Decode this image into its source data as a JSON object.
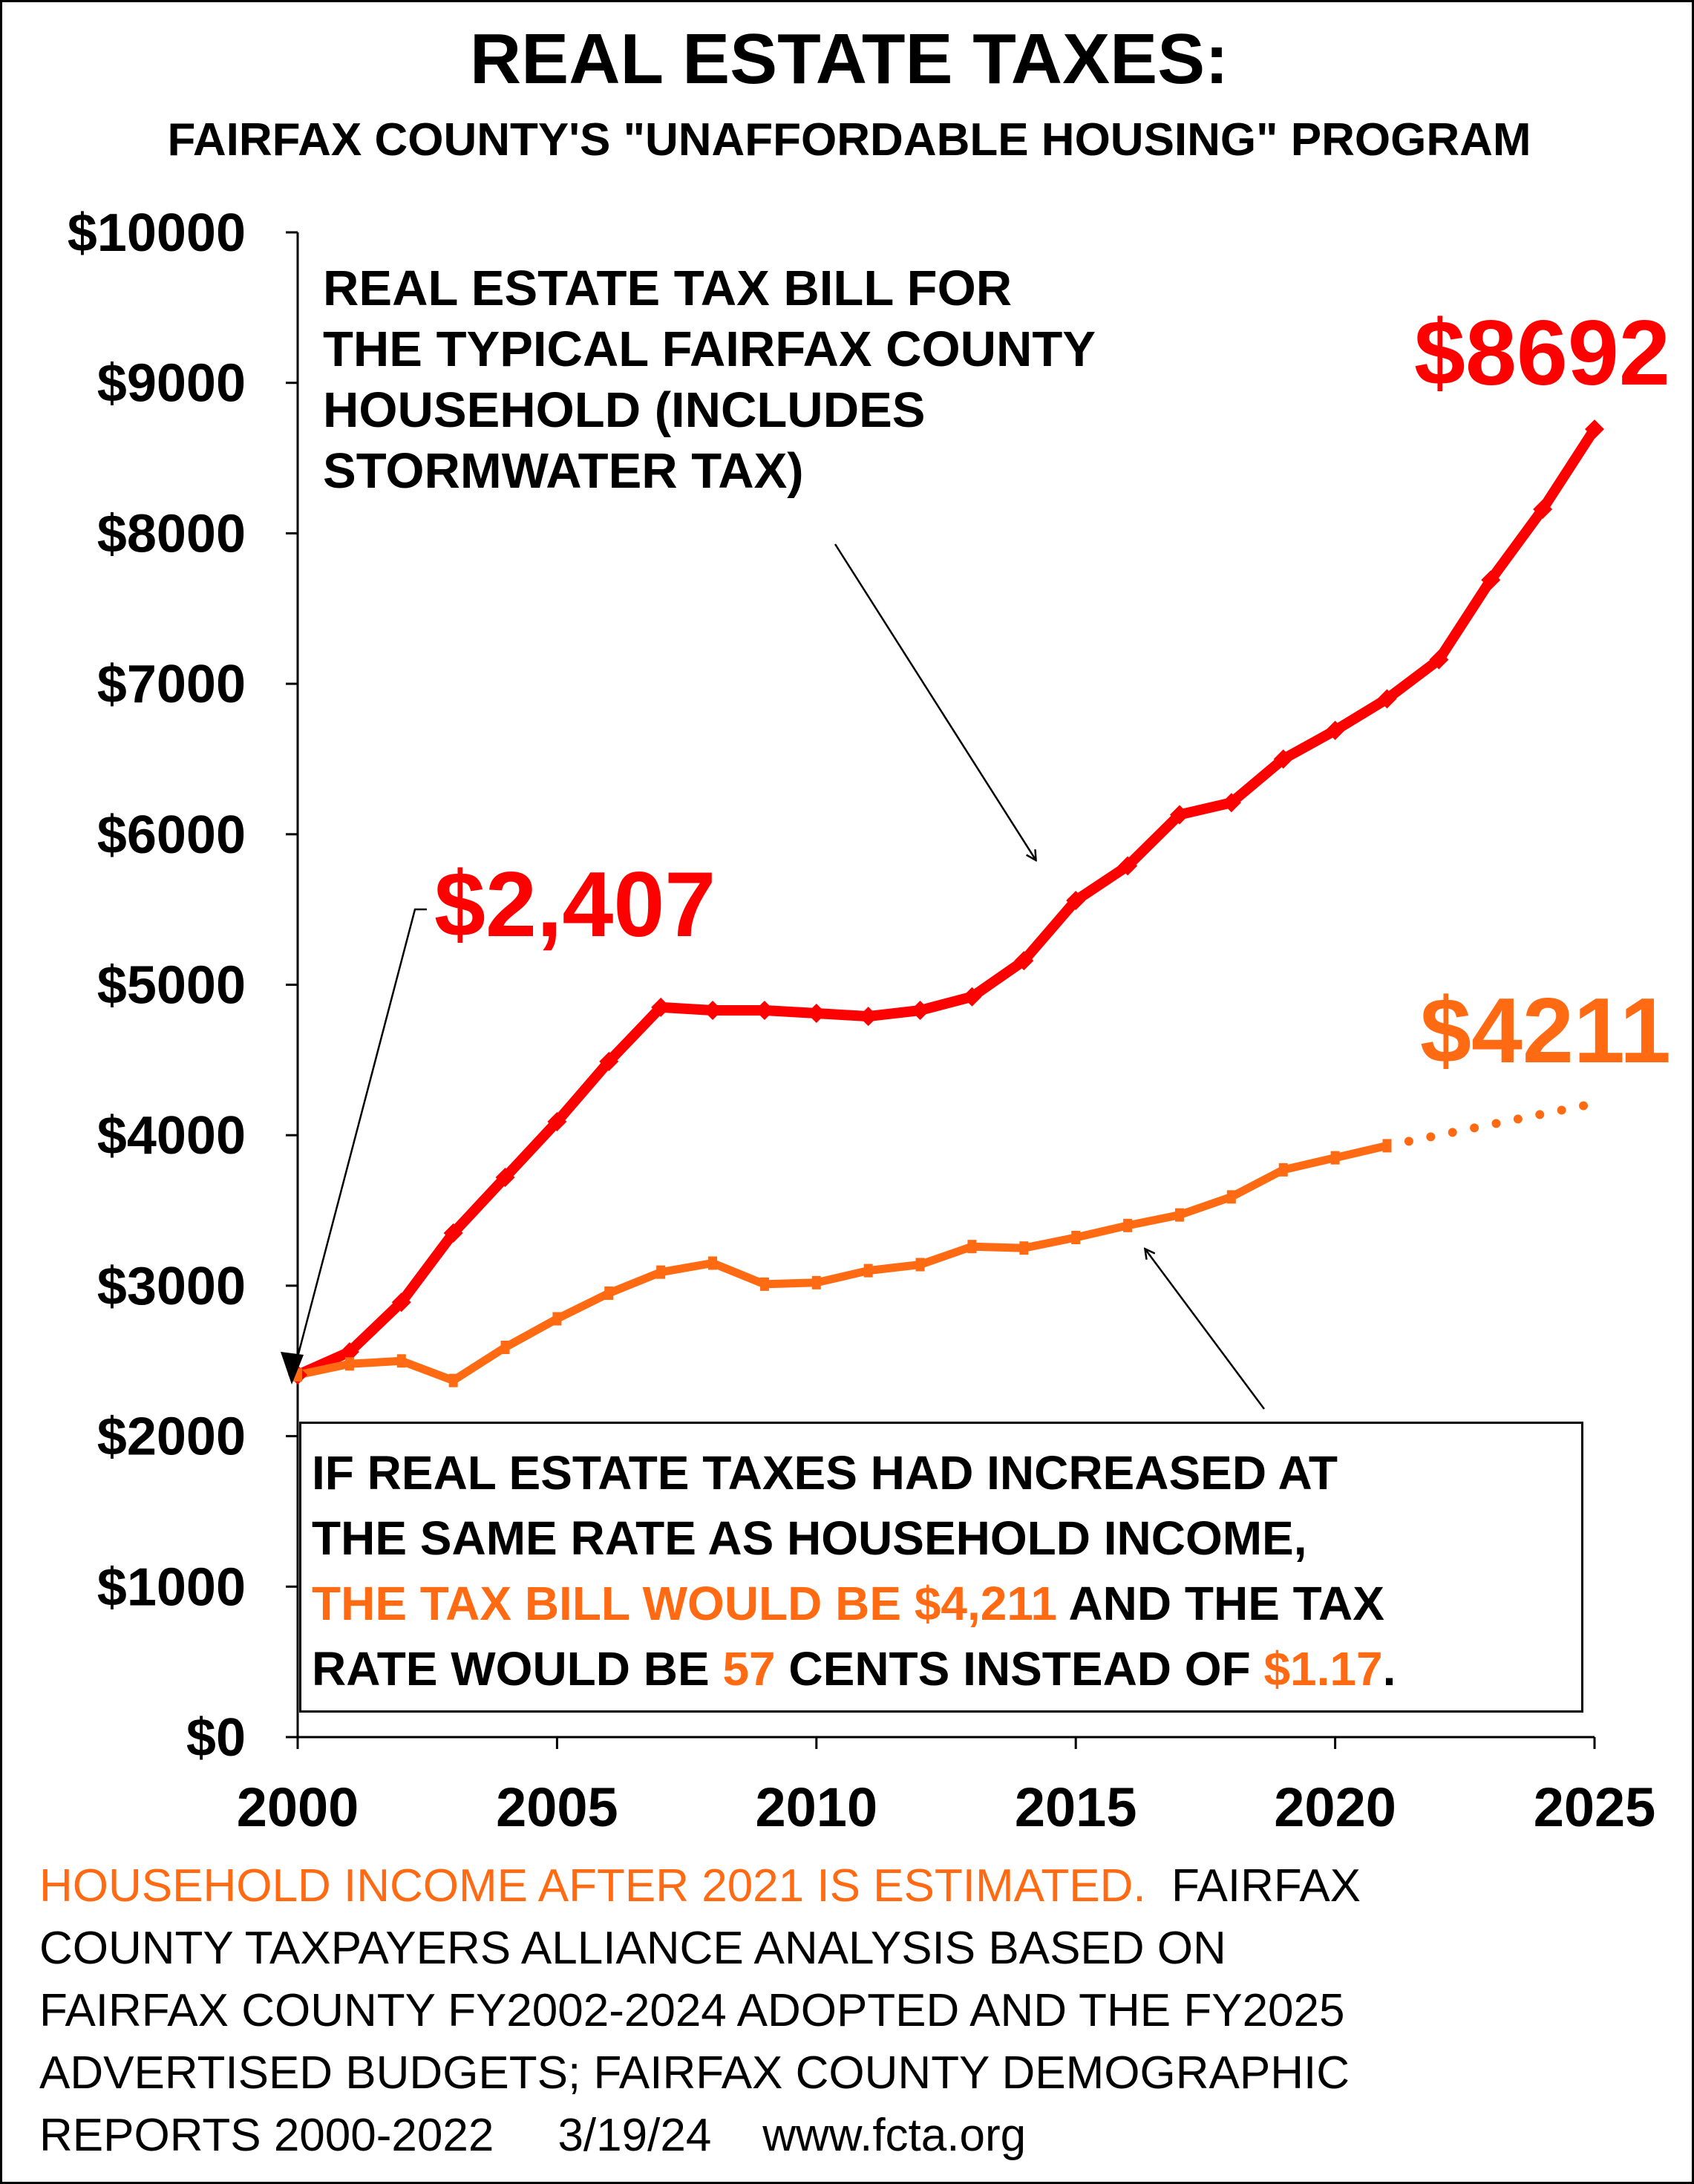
{
  "title": "REAL ESTATE TAXES:",
  "subtitle": "FAIRFAX COUNTY'S \"UNAFFORDABLE HOUSING\" PROGRAM",
  "colors": {
    "red_series": "#ff0000",
    "orange_series": "#ff6a13",
    "text": "#000000"
  },
  "callout_red": [
    "REAL ESTATE TAX BILL FOR",
    "THE TYPICAL FAIRFAX COUNTY",
    "HOUSEHOLD  (INCLUDES",
    "STORMWATER TAX)"
  ],
  "label_start": "$2,407",
  "label_end_red": "$8692",
  "label_end_orange": "$4211",
  "box": {
    "line1": "IF REAL ESTATE TAXES HAD INCREASED AT",
    "line2": "THE SAME RATE AS HOUSEHOLD INCOME,",
    "line3_orange": "THE  TAX BILL WOULD BE $4,211",
    "line3_black": " AND THE TAX",
    "line4_a": "RATE WOULD BE ",
    "line4_b": "57",
    "line4_c": " CENTS INSTEAD OF ",
    "line4_d": "$1.17",
    "line4_e": "."
  },
  "footer": {
    "estimated_note": "HOUSEHOLD INCOME AFTER 2021 IS ESTIMATED.",
    "source_first": "  FAIRFAX",
    "source_lines": [
      "COUNTY TAXPAYERS ALLIANCE ANALYSIS BASED ON",
      "FAIRFAX COUNTY FY2002-2024  ADOPTED  AND THE FY2025",
      "ADVERTISED BUDGETS;  FAIRFAX COUNTY DEMOGRAPHIC",
      "REPORTS 2000-2022     3/19/24    www.fcta.org"
    ]
  },
  "chart_data": {
    "type": "line",
    "title": "REAL ESTATE TAXES:",
    "subtitle": "FAIRFAX COUNTY'S \"UNAFFORDABLE HOUSING\" PROGRAM",
    "xlim": [
      2000,
      2025
    ],
    "ylim": [
      0,
      10000
    ],
    "x_ticks": [
      2000,
      2005,
      2010,
      2015,
      2020,
      2025
    ],
    "y_ticks": [
      0,
      1000,
      2000,
      3000,
      4000,
      5000,
      6000,
      7000,
      8000,
      9000,
      10000
    ],
    "y_tick_labels": [
      "$0",
      "$1000",
      "$2000",
      "$3000",
      "$4000",
      "$5000",
      "$6000",
      "$7000",
      "$8000",
      "$9000",
      "$10000"
    ],
    "x_tick_labels": [
      "2000",
      "2005",
      "2010",
      "2015",
      "2020",
      "2025"
    ],
    "grid": false,
    "series": [
      {
        "name": "Real estate tax bill (includes stormwater tax)",
        "color": "#ff0000",
        "x": [
          2000,
          2001,
          2002,
          2003,
          2004,
          2005,
          2006,
          2007,
          2008,
          2009,
          2010,
          2011,
          2012,
          2013,
          2014,
          2015,
          2016,
          2017,
          2018,
          2019,
          2020,
          2021,
          2022,
          2023,
          2024,
          2025
        ],
        "values": [
          2407,
          2560,
          2890,
          3350,
          3720,
          4090,
          4490,
          4850,
          4830,
          4830,
          4810,
          4790,
          4830,
          4920,
          5160,
          5560,
          5790,
          6130,
          6210,
          6500,
          6690,
          6900,
          7160,
          7690,
          8160,
          8692
        ]
      },
      {
        "name": "Tax bill if increased at rate of household income",
        "color": "#ff6a13",
        "x": [
          2000,
          2001,
          2002,
          2003,
          2004,
          2005,
          2006,
          2007,
          2008,
          2009,
          2010,
          2011,
          2012,
          2013,
          2014,
          2015,
          2016,
          2017,
          2018,
          2019,
          2020,
          2021
        ],
        "values": [
          2407,
          2480,
          2500,
          2370,
          2590,
          2780,
          2950,
          3090,
          3150,
          3010,
          3020,
          3100,
          3140,
          3260,
          3250,
          3320,
          3400,
          3470,
          3590,
          3770,
          3850,
          3930
        ]
      },
      {
        "name": "Estimated (after 2021)",
        "color": "#ff6a13",
        "dotted": true,
        "x": [
          2021,
          2025
        ],
        "values": [
          3930,
          4211
        ]
      }
    ]
  }
}
